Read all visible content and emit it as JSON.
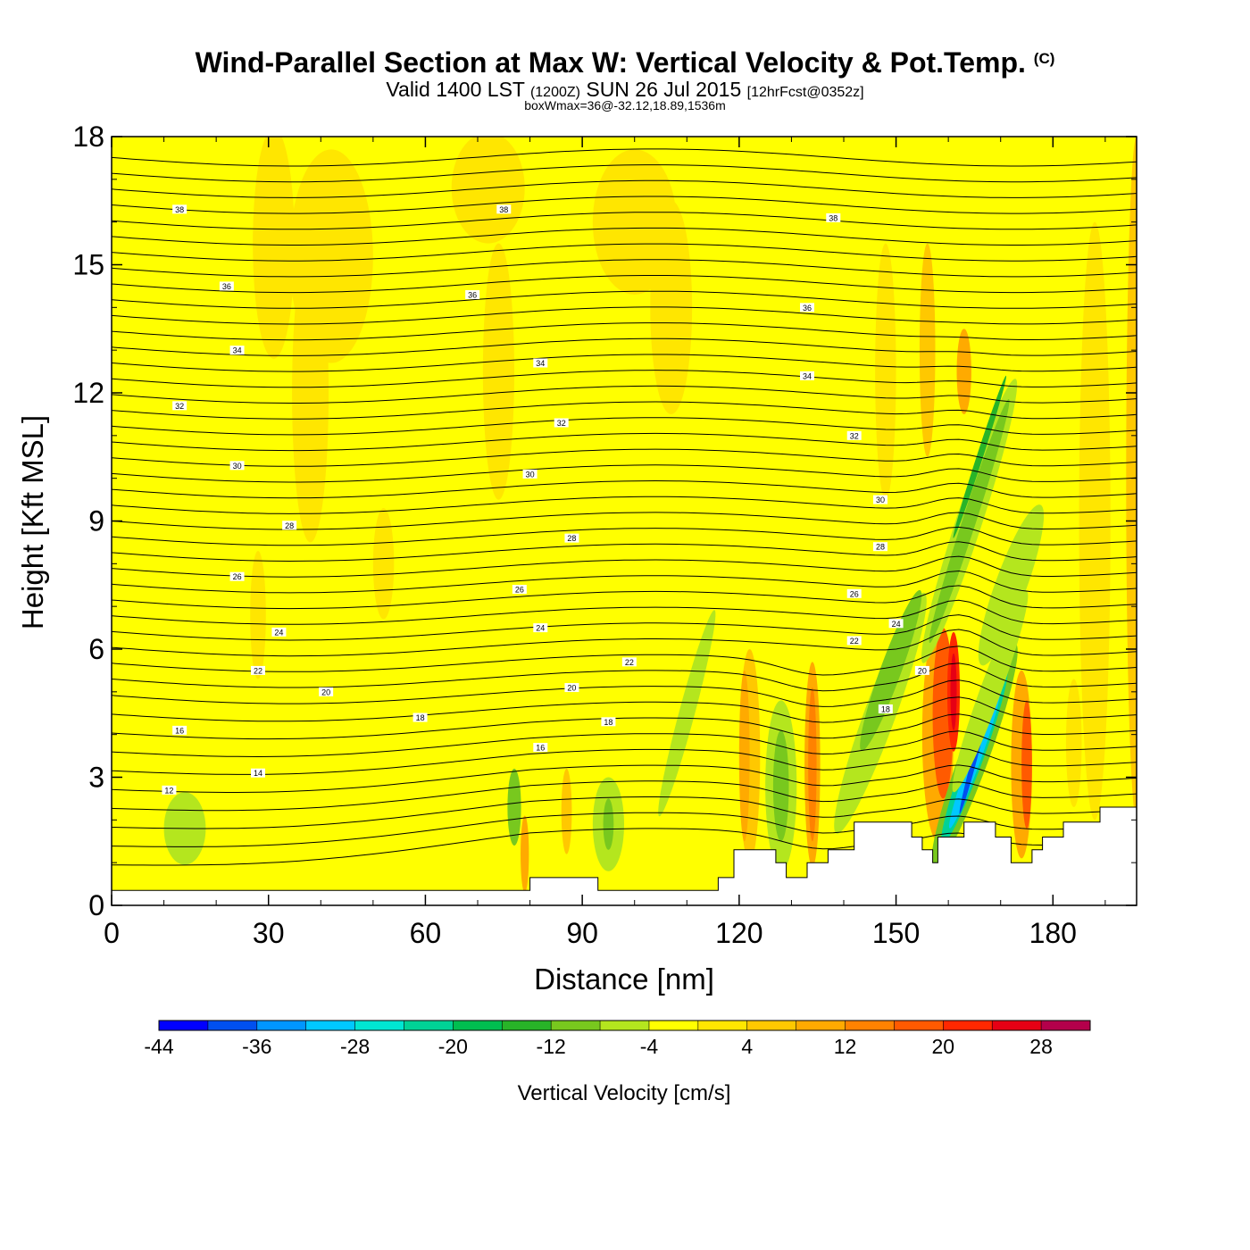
{
  "title": {
    "main": "Wind-Parallel Section at Max W: Vertical Velocity & Pot.Temp.",
    "copyright": "(C)",
    "valid_prefix": "Valid 1400 LST",
    "valid_utc": "(1200Z)",
    "valid_date": "SUN 26 Jul 2015",
    "forecast": "[12hrFcst@0352z]",
    "box_info": "boxWmax=36@-32.12,18.89,1536m"
  },
  "chart_data": {
    "type": "heatmap",
    "xlabel": "Distance [nm]",
    "ylabel": "Height [Kft MSL]",
    "xlim": [
      0,
      196
    ],
    "ylim": [
      0,
      18
    ],
    "x_ticks": [
      0,
      30,
      60,
      90,
      120,
      150,
      180
    ],
    "y_ticks": [
      0,
      3,
      6,
      9,
      12,
      15,
      18
    ],
    "grid": false,
    "colorbar": {
      "title": "Vertical Velocity [cm/s]",
      "min": -44,
      "step": 4,
      "tick_labels": [
        "-44",
        "-36",
        "-28",
        "-20",
        "-12",
        "-4",
        "4",
        "12",
        "20",
        "28"
      ],
      "colors": [
        "#0000ff",
        "#0050f0",
        "#0096ff",
        "#00c8ff",
        "#00e6d2",
        "#00d296",
        "#00be50",
        "#28b428",
        "#78c81e",
        "#b4e61e",
        "#ffff00",
        "#ffe600",
        "#ffc800",
        "#ffaa00",
        "#ff8200",
        "#ff5a00",
        "#ff2800",
        "#e60014",
        "#b4004b"
      ]
    },
    "theta_contours": {
      "label_values": [
        "12",
        "14",
        "16",
        "18",
        "20",
        "22",
        "24",
        "26",
        "28",
        "30",
        "32",
        "34",
        "36"
      ],
      "labels": [
        {
          "x": 11,
          "y": 2.7,
          "v": "12"
        },
        {
          "x": 28,
          "y": 3.1,
          "v": "14"
        },
        {
          "x": 13,
          "y": 4.1,
          "v": "16"
        },
        {
          "x": 59,
          "y": 4.4,
          "v": "18"
        },
        {
          "x": 82,
          "y": 3.7,
          "v": "16"
        },
        {
          "x": 95,
          "y": 4.3,
          "v": "18"
        },
        {
          "x": 148,
          "y": 4.6,
          "v": "18"
        },
        {
          "x": 41,
          "y": 5.0,
          "v": "20"
        },
        {
          "x": 88,
          "y": 5.1,
          "v": "20"
        },
        {
          "x": 155,
          "y": 5.5,
          "v": "20"
        },
        {
          "x": 28,
          "y": 5.5,
          "v": "22"
        },
        {
          "x": 99,
          "y": 5.7,
          "v": "22"
        },
        {
          "x": 142,
          "y": 6.2,
          "v": "22"
        },
        {
          "x": 32,
          "y": 6.4,
          "v": "24"
        },
        {
          "x": 82,
          "y": 6.5,
          "v": "24"
        },
        {
          "x": 150,
          "y": 6.6,
          "v": "24"
        },
        {
          "x": 24,
          "y": 7.7,
          "v": "26"
        },
        {
          "x": 78,
          "y": 7.4,
          "v": "26"
        },
        {
          "x": 142,
          "y": 7.3,
          "v": "26"
        },
        {
          "x": 34,
          "y": 8.9,
          "v": "28"
        },
        {
          "x": 88,
          "y": 8.6,
          "v": "28"
        },
        {
          "x": 147,
          "y": 8.4,
          "v": "28"
        },
        {
          "x": 24,
          "y": 10.3,
          "v": "30"
        },
        {
          "x": 80,
          "y": 10.1,
          "v": "30"
        },
        {
          "x": 147,
          "y": 9.5,
          "v": "30"
        },
        {
          "x": 13,
          "y": 11.7,
          "v": "32"
        },
        {
          "x": 86,
          "y": 11.3,
          "v": "32"
        },
        {
          "x": 142,
          "y": 11.0,
          "v": "32"
        },
        {
          "x": 24,
          "y": 13.0,
          "v": "34"
        },
        {
          "x": 82,
          "y": 12.7,
          "v": "34"
        },
        {
          "x": 133,
          "y": 12.4,
          "v": "34"
        },
        {
          "x": 22,
          "y": 14.5,
          "v": "36"
        },
        {
          "x": 69,
          "y": 14.3,
          "v": "36"
        },
        {
          "x": 133,
          "y": 14.0,
          "v": "36"
        },
        {
          "x": 13,
          "y": 16.3,
          "v": "38"
        },
        {
          "x": 75,
          "y": 16.3,
          "v": "38"
        },
        {
          "x": 138,
          "y": 16.1,
          "v": "38"
        }
      ]
    },
    "terrain": [
      [
        0,
        0.35
      ],
      [
        80,
        0.35
      ],
      [
        80,
        0.65
      ],
      [
        93,
        0.65
      ],
      [
        93,
        0.35
      ],
      [
        116,
        0.35
      ],
      [
        116,
        0.65
      ],
      [
        119,
        0.65
      ],
      [
        119,
        1.3
      ],
      [
        127,
        1.3
      ],
      [
        127,
        1.0
      ],
      [
        129,
        1.0
      ],
      [
        129,
        0.65
      ],
      [
        133,
        0.65
      ],
      [
        133,
        1.0
      ],
      [
        137,
        1.0
      ],
      [
        137,
        1.3
      ],
      [
        142,
        1.3
      ],
      [
        142,
        1.95
      ],
      [
        153,
        1.95
      ],
      [
        153,
        1.6
      ],
      [
        155,
        1.6
      ],
      [
        155,
        1.3
      ],
      [
        157,
        1.3
      ],
      [
        157,
        1.0
      ],
      [
        158,
        1.0
      ],
      [
        158,
        1.6
      ],
      [
        163,
        1.6
      ],
      [
        163,
        1.95
      ],
      [
        169,
        1.95
      ],
      [
        169,
        1.6
      ],
      [
        172,
        1.6
      ],
      [
        172,
        1.0
      ],
      [
        176,
        1.0
      ],
      [
        176,
        1.3
      ],
      [
        178,
        1.3
      ],
      [
        178,
        1.6
      ],
      [
        182,
        1.6
      ],
      [
        182,
        1.95
      ],
      [
        189,
        1.95
      ],
      [
        189,
        2.3
      ],
      [
        196,
        2.3
      ]
    ]
  }
}
